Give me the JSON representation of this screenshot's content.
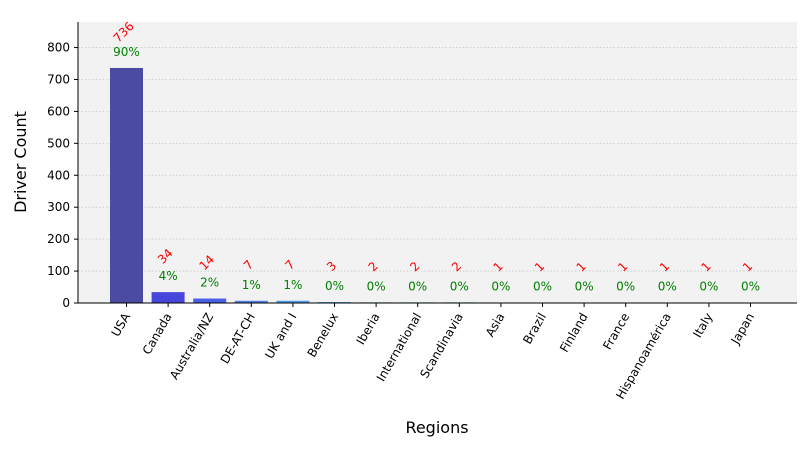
{
  "chart_data": {
    "type": "bar",
    "xlabel": "Regions",
    "ylabel": "Driver Count",
    "categories": [
      "USA",
      "Canada",
      "Australia/NZ",
      "DE-AT-CH",
      "UK and I",
      "Benelux",
      "Iberia",
      "International",
      "Scandinavia",
      "Asia",
      "Brazil",
      "Finland",
      "France",
      "Hispanoamérica",
      "Italy",
      "Japan"
    ],
    "values": [
      736,
      34,
      14,
      7,
      7,
      3,
      2,
      2,
      2,
      1,
      1,
      1,
      1,
      1,
      1,
      1
    ],
    "percent_labels": [
      "90%",
      "4%",
      "2%",
      "1%",
      "1%",
      "0%",
      "0%",
      "0%",
      "0%",
      "0%",
      "0%",
      "0%",
      "0%",
      "0%",
      "0%",
      "0%"
    ],
    "yticks": [
      0,
      100,
      200,
      300,
      400,
      500,
      600,
      700,
      800
    ],
    "ylim": [
      0,
      880
    ],
    "grid": true,
    "bar_colors": [
      "#4b4ba3",
      "#4646db",
      "#4b5ee8",
      "#4f7ee8",
      "#4f97e8",
      "#4aa9d6",
      "#45b5c4",
      "#42bcae",
      "#3fba8d",
      "#3fb872",
      "#4db34f",
      "#7db03e",
      "#b0a63a",
      "#c98a38",
      "#c96238",
      "#b03c3c"
    ],
    "count_label_color": "#ff0000",
    "percent_label_color": "#008000",
    "plot_background": "#f2f2f2",
    "grid_color": "#c8c8c8"
  }
}
